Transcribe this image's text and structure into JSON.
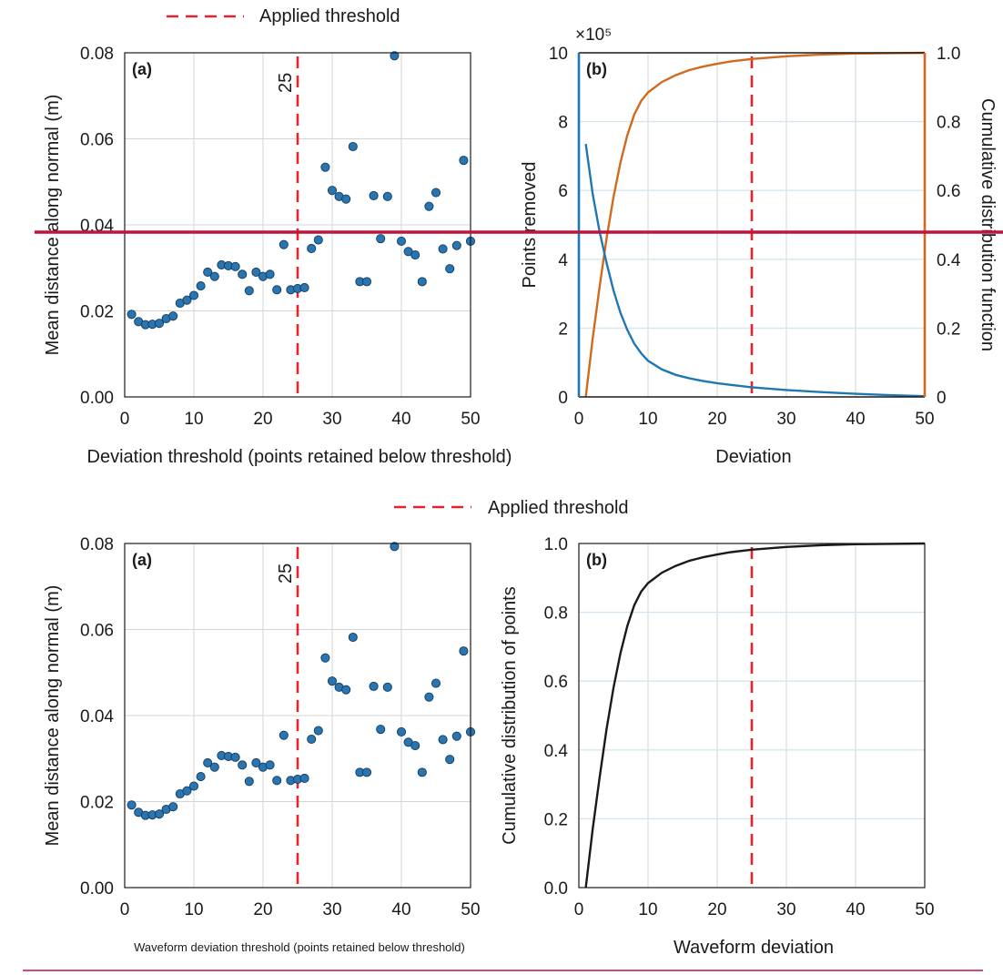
{
  "legend_top": {
    "label": "Applied threshold",
    "color": "#e8222b"
  },
  "legend_bottom": {
    "label": "Applied threshold",
    "color": "#e8222b"
  },
  "colors": {
    "points": "#2a74b0",
    "points_removed": "#1f77b4",
    "cdf": "#d2691e",
    "cdf_bottom": "#1a1a1a",
    "threshold": "#e8222b",
    "overlay_line": "#c0143c"
  },
  "threshold_marker_label": "25",
  "chart_data": [
    {
      "id": "top_a",
      "type": "scatter",
      "panel_label": "(a)",
      "xlabel": "Deviation threshold (points retained below threshold)",
      "ylabel": "Mean distance along normal (m)",
      "xlim": [
        0,
        50
      ],
      "ylim": [
        0,
        0.08
      ],
      "xticks": [
        "0",
        "10",
        "20",
        "30",
        "40",
        "50"
      ],
      "yticks": [
        "0.00",
        "0.02",
        "0.04",
        "0.06",
        "0.08"
      ],
      "threshold": 25,
      "threshold_label": "25",
      "grid": true,
      "x": [
        1,
        2,
        3,
        4,
        5,
        6,
        7,
        8,
        9,
        10,
        11,
        12,
        13,
        14,
        15,
        16,
        17,
        18,
        19,
        20,
        21,
        22,
        23,
        24,
        25,
        26,
        27,
        28,
        29,
        30,
        31,
        32,
        33,
        34,
        35,
        36,
        37,
        38,
        39,
        40,
        41,
        42,
        43,
        44,
        45,
        46,
        47,
        48,
        49,
        50
      ],
      "y": [
        0.0192,
        0.0175,
        0.0168,
        0.0169,
        0.0171,
        0.0182,
        0.0188,
        0.0218,
        0.0225,
        0.0236,
        0.0258,
        0.029,
        0.028,
        0.0307,
        0.0305,
        0.0303,
        0.0285,
        0.0247,
        0.029,
        0.028,
        0.0285,
        0.0249,
        0.0354,
        0.0249,
        0.0252,
        0.0254,
        0.0345,
        0.0365,
        0.0534,
        0.048,
        0.0466,
        0.046,
        0.0582,
        0.0268,
        0.0268,
        0.0468,
        0.0368,
        0.0466,
        0.0793,
        0.0362,
        0.0338,
        0.033,
        0.0268,
        0.0443,
        0.0475,
        0.0344,
        0.0298,
        0.0352,
        0.055,
        0.0362
      ]
    },
    {
      "id": "top_b",
      "type": "line",
      "panel_label": "(b)",
      "xlabel": "Deviation",
      "ylabel": "Points removed",
      "ylabel_right": "Cumulative distribution function",
      "y_multiplier": "×10⁵",
      "xlim": [
        0,
        50
      ],
      "ylim": [
        0,
        10
      ],
      "ylim_right": [
        0,
        1
      ],
      "xticks": [
        "0",
        "10",
        "20",
        "30",
        "40",
        "50"
      ],
      "yticks": [
        "0",
        "2",
        "4",
        "6",
        "8",
        "10"
      ],
      "yticks_right": [
        "0",
        "0.2",
        "0.4",
        "0.6",
        "0.8",
        "1.0"
      ],
      "threshold": 25,
      "grid": true,
      "series": [
        {
          "name": "Points removed",
          "axis": "left",
          "x": [
            1,
            2,
            3,
            4,
            5,
            6,
            7,
            8,
            9,
            10,
            12,
            14,
            16,
            18,
            20,
            22,
            25,
            30,
            35,
            40,
            45,
            50
          ],
          "y": [
            7.35,
            5.9,
            4.8,
            3.9,
            3.1,
            2.45,
            1.95,
            1.55,
            1.27,
            1.05,
            0.8,
            0.64,
            0.54,
            0.46,
            0.4,
            0.35,
            0.28,
            0.2,
            0.14,
            0.09,
            0.05,
            0.02
          ]
        },
        {
          "name": "Cumulative distribution function",
          "axis": "right",
          "x": [
            1,
            2,
            3,
            4,
            5,
            6,
            7,
            8,
            9,
            10,
            12,
            14,
            16,
            18,
            20,
            22,
            25,
            30,
            35,
            40,
            45,
            50
          ],
          "y": [
            0.0,
            0.17,
            0.32,
            0.46,
            0.58,
            0.68,
            0.76,
            0.82,
            0.86,
            0.885,
            0.915,
            0.935,
            0.95,
            0.96,
            0.968,
            0.975,
            0.982,
            0.99,
            0.995,
            0.998,
            0.999,
            1.0
          ]
        }
      ]
    },
    {
      "id": "bottom_a",
      "type": "scatter",
      "panel_label": "(a)",
      "xlabel": "Waveform deviation threshold (points retained below threshold)",
      "ylabel": "Mean distance along normal (m)",
      "xlim": [
        0,
        50
      ],
      "ylim": [
        0,
        0.08
      ],
      "xticks": [
        "0",
        "10",
        "20",
        "30",
        "40",
        "50"
      ],
      "yticks": [
        "0.00",
        "0.02",
        "0.04",
        "0.06",
        "0.08"
      ],
      "threshold": 25,
      "threshold_label": "25",
      "grid": true,
      "x": [
        1,
        2,
        3,
        4,
        5,
        6,
        7,
        8,
        9,
        10,
        11,
        12,
        13,
        14,
        15,
        16,
        17,
        18,
        19,
        20,
        21,
        22,
        23,
        24,
        25,
        26,
        27,
        28,
        29,
        30,
        31,
        32,
        33,
        34,
        35,
        36,
        37,
        38,
        39,
        40,
        41,
        42,
        43,
        44,
        45,
        46,
        47,
        48,
        49,
        50
      ],
      "y": [
        0.0192,
        0.0175,
        0.0168,
        0.0169,
        0.0171,
        0.0182,
        0.0188,
        0.0218,
        0.0225,
        0.0236,
        0.0258,
        0.029,
        0.028,
        0.0307,
        0.0305,
        0.0303,
        0.0285,
        0.0247,
        0.029,
        0.028,
        0.0285,
        0.0249,
        0.0354,
        0.0249,
        0.0252,
        0.0254,
        0.0345,
        0.0365,
        0.0534,
        0.048,
        0.0466,
        0.046,
        0.0582,
        0.0268,
        0.0268,
        0.0468,
        0.0368,
        0.0466,
        0.0793,
        0.0362,
        0.0338,
        0.033,
        0.0268,
        0.0443,
        0.0475,
        0.0344,
        0.0298,
        0.0352,
        0.055,
        0.0362
      ]
    },
    {
      "id": "bottom_b",
      "type": "line",
      "panel_label": "(b)",
      "xlabel": "Waveform deviation",
      "ylabel": "Cumulative distribution of points",
      "xlim": [
        0,
        50
      ],
      "ylim": [
        0,
        1
      ],
      "xticks": [
        "0",
        "10",
        "20",
        "30",
        "40",
        "50"
      ],
      "yticks": [
        "0.0",
        "0.2",
        "0.4",
        "0.6",
        "0.8",
        "1.0"
      ],
      "threshold": 25,
      "grid": true,
      "series": [
        {
          "x": [
            1,
            2,
            3,
            4,
            5,
            6,
            7,
            8,
            9,
            10,
            12,
            14,
            16,
            18,
            20,
            22,
            25,
            30,
            35,
            40,
            45,
            50
          ],
          "y": [
            0.0,
            0.17,
            0.32,
            0.46,
            0.58,
            0.68,
            0.76,
            0.82,
            0.86,
            0.885,
            0.915,
            0.935,
            0.95,
            0.96,
            0.968,
            0.975,
            0.982,
            0.99,
            0.995,
            0.998,
            0.999,
            1.0
          ]
        }
      ]
    }
  ]
}
